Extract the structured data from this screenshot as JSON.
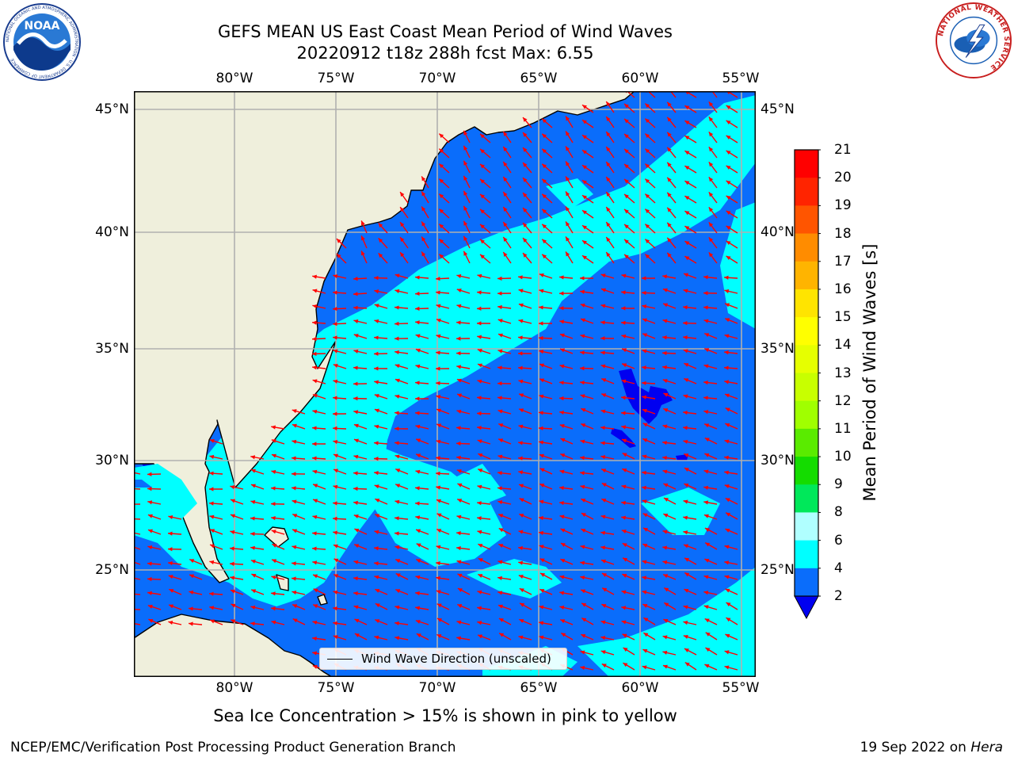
{
  "title": {
    "line1": "GEFS MEAN US East Coast Mean Period of Wind Waves",
    "line2": "20220912 t18z 288h fcst   Max: 6.55"
  },
  "logos": {
    "left_name": "NOAA",
    "left_text": "NOAA",
    "left_ring": "NATIONAL OCEANIC AND ATMOSPHERIC ADMINISTRATION · U.S. DEPARTMENT OF COMMERCE",
    "right_name": "National Weather Service",
    "right_ring": "NATIONAL WEATHER SERVICE"
  },
  "map": {
    "lon_labels": [
      "80°W",
      "75°W",
      "70°W",
      "65°W",
      "60°W",
      "55°W"
    ],
    "lat_labels": [
      "45°N",
      "40°N",
      "35°N",
      "30°N",
      "25°N"
    ],
    "legend_label": "Wind Wave Direction (unscaled)",
    "colors": {
      "land": "#efefdc",
      "ocean_2_4": "#0a6dfb",
      "ocean_4_6": "#00ffff",
      "ocean_lt_2": "#0000f0",
      "grid": "#b0b0b0",
      "arrow": "#ff0000"
    }
  },
  "colorbar": {
    "label": "Mean Period of Wind Waves [s]",
    "ticks": [
      "21",
      "20",
      "19",
      "18",
      "17",
      "16",
      "15",
      "14",
      "13",
      "12",
      "11",
      "10",
      "9",
      "8",
      "6",
      "4",
      "2"
    ],
    "colors": [
      "#ff0000",
      "#ff2400",
      "#ff5500",
      "#ff8c00",
      "#ffb400",
      "#ffe400",
      "#ffff00",
      "#e6ff00",
      "#c8ff00",
      "#a0ff00",
      "#5aeb00",
      "#14dc00",
      "#00e85a",
      "#55ff8c",
      "#b0ffff",
      "#55ffff",
      "#00ffff",
      "#0a6dfb"
    ],
    "under_color": "#0000f0"
  },
  "note": "Sea Ice Concentration > 15% is shown in pink to yellow",
  "footer": {
    "left": "NCEP/EMC/Verification Post Processing Product Generation Branch",
    "right_prefix": "19 Sep 2022 on ",
    "right_italic": "Hera"
  }
}
